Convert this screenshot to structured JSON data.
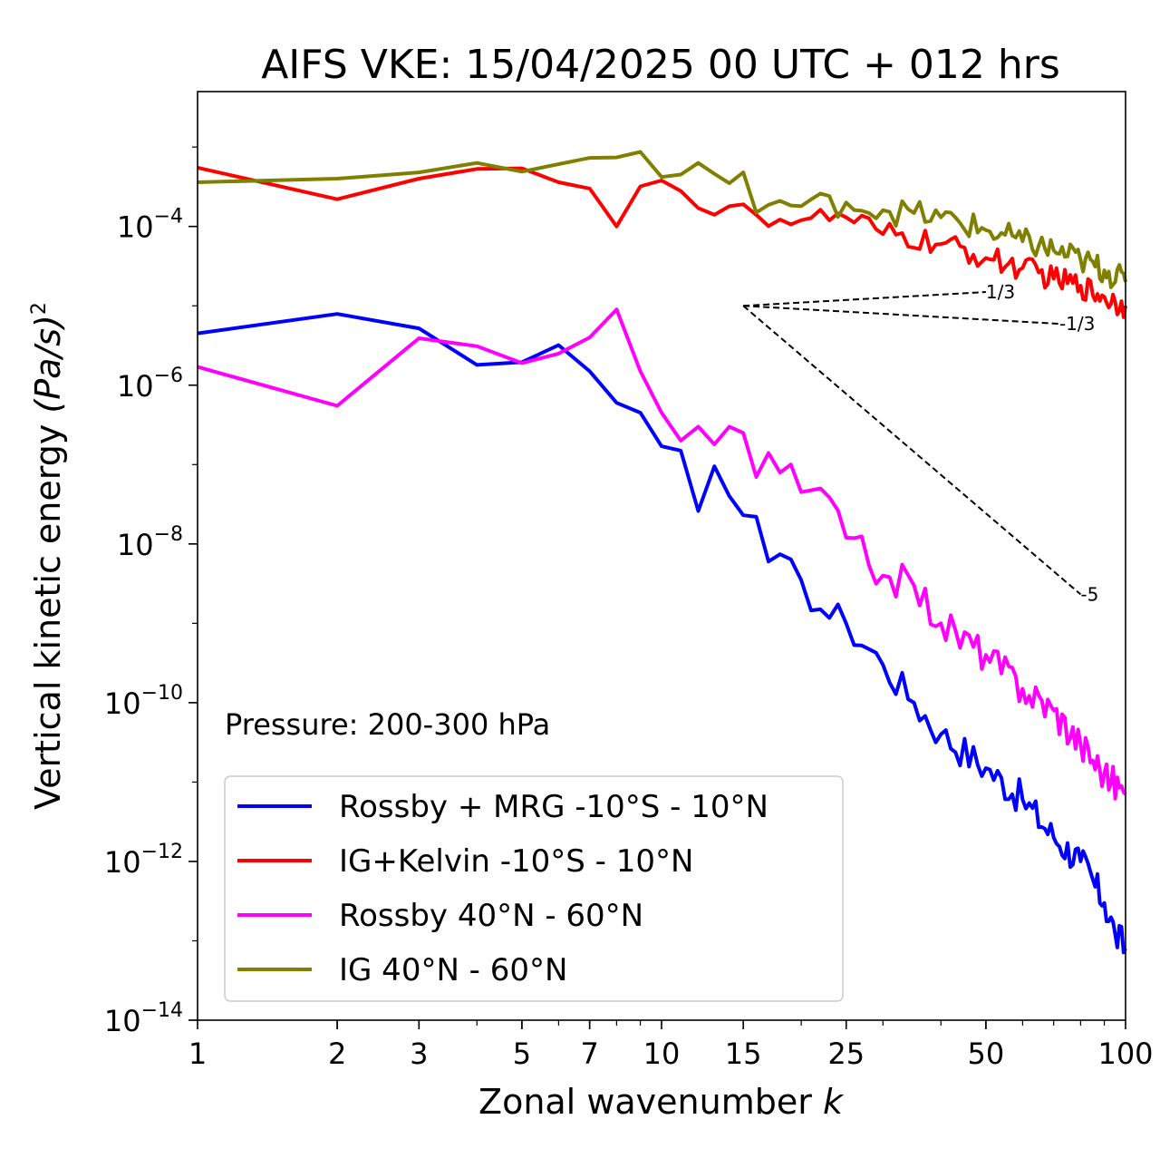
{
  "chart_data": {
    "type": "line",
    "title": "AIFS VKE: 15/04/2025 00 UTC + 012 hrs",
    "xlabel": "Zonal wavenumber",
    "xlabel_symbol": "k",
    "ylabel": "Vertical kinetic energy",
    "ylabel_units": "(Pa/s)",
    "ylabel_exponent": "2",
    "xscale": "log",
    "yscale": "log",
    "xlim": [
      1,
      100
    ],
    "ylim": [
      1e-14,
      0.005
    ],
    "xticks": [
      1,
      2,
      3,
      5,
      7,
      10,
      15,
      25,
      50,
      100
    ],
    "xtick_labels": [
      "1",
      "2",
      "3",
      "5",
      "7",
      "10",
      "15",
      "25",
      "50",
      "100"
    ],
    "yticks": [
      {
        "base": "10",
        "exp": "−4",
        "value": 0.0001
      },
      {
        "base": "10",
        "exp": "−6",
        "value": 1e-06
      },
      {
        "base": "10",
        "exp": "−8",
        "value": 1e-08
      },
      {
        "base": "10",
        "exp": "−10",
        "value": 1e-10
      },
      {
        "base": "10",
        "exp": "−12",
        "value": 1e-12
      },
      {
        "base": "10",
        "exp": "−14",
        "value": 1e-14
      }
    ],
    "grid": false,
    "annotation": "Pressure: 200-300 hPa",
    "legend_position": "lower-left",
    "series": [
      {
        "name": "Rossby + MRG -10°S - 10°N",
        "color": "#0000ff",
        "anchors": [
          [
            1,
            4.5e-06
          ],
          [
            2,
            7.9e-06
          ],
          [
            3,
            5.2e-06
          ],
          [
            4,
            1.8e-06
          ],
          [
            5,
            1.95e-06
          ],
          [
            6,
            3.2e-06
          ],
          [
            7,
            1.5e-06
          ],
          [
            8,
            6e-07
          ],
          [
            9,
            4.5e-07
          ],
          [
            10,
            1.7e-07
          ],
          [
            11,
            1.5e-07
          ],
          [
            12,
            2.6e-08
          ],
          [
            13,
            9.5e-08
          ],
          [
            14,
            4e-08
          ],
          [
            15,
            2.3e-08
          ],
          [
            16,
            2.2e-08
          ],
          [
            17,
            6e-09
          ],
          [
            20,
            3.5e-09
          ],
          [
            22,
            1.5e-09
          ],
          [
            25,
            1e-09
          ],
          [
            30,
            3e-10
          ],
          [
            35,
            1e-10
          ],
          [
            40,
            4e-11
          ],
          [
            50,
            1.5e-11
          ],
          [
            60,
            6e-12
          ],
          [
            70,
            2e-12
          ],
          [
            80,
            1e-12
          ],
          [
            90,
            3e-13
          ],
          [
            95,
            1.2e-13
          ],
          [
            100,
            8e-14
          ]
        ],
        "noise": 0.14
      },
      {
        "name": "IG+Kelvin -10°S - 10°N",
        "color": "#ff0000",
        "anchors": [
          [
            1,
            0.00055
          ],
          [
            2,
            0.00022
          ],
          [
            3,
            0.0004
          ],
          [
            4,
            0.00053
          ],
          [
            5,
            0.00054
          ],
          [
            6,
            0.00036
          ],
          [
            7,
            0.0003
          ],
          [
            8,
            0.0001
          ],
          [
            9,
            0.00032
          ],
          [
            10,
            0.00038
          ],
          [
            11,
            0.00028
          ],
          [
            12,
            0.00017
          ],
          [
            13,
            0.00014
          ],
          [
            14,
            0.00018
          ],
          [
            15,
            0.00019
          ],
          [
            16,
            0.00014
          ],
          [
            20,
            0.00012
          ],
          [
            25,
            0.00013
          ],
          [
            30,
            8e-05
          ],
          [
            40,
            6e-05
          ],
          [
            50,
            4e-05
          ],
          [
            60,
            3e-05
          ],
          [
            70,
            2.2e-05
          ],
          [
            80,
            1.8e-05
          ],
          [
            90,
            1.3e-05
          ],
          [
            100,
            1e-05
          ]
        ],
        "noise": 0.1
      },
      {
        "name": "Rossby 40°N - 60°N",
        "color": "#ff00ff",
        "anchors": [
          [
            1,
            1.7e-06
          ],
          [
            2,
            5.5e-07
          ],
          [
            3,
            3.9e-06
          ],
          [
            4,
            3.1e-06
          ],
          [
            5,
            1.9e-06
          ],
          [
            6,
            2.5e-06
          ],
          [
            7,
            4e-06
          ],
          [
            8,
            9e-06
          ],
          [
            9,
            1.5e-06
          ],
          [
            10,
            4.5e-07
          ],
          [
            11,
            2e-07
          ],
          [
            12,
            3e-07
          ],
          [
            13,
            1.8e-07
          ],
          [
            14,
            3e-07
          ],
          [
            15,
            2.5e-07
          ],
          [
            16,
            7e-08
          ],
          [
            17,
            1.4e-07
          ],
          [
            20,
            4.5e-08
          ],
          [
            22,
            5e-08
          ],
          [
            25,
            1.2e-08
          ],
          [
            30,
            4e-09
          ],
          [
            35,
            3e-09
          ],
          [
            40,
            1e-09
          ],
          [
            50,
            4e-10
          ],
          [
            60,
            1.5e-10
          ],
          [
            70,
            8e-11
          ],
          [
            80,
            3e-11
          ],
          [
            90,
            1.3e-11
          ],
          [
            100,
            7e-12
          ]
        ],
        "noise": 0.14
      },
      {
        "name": "IG 40°N - 60°N",
        "color": "#808000",
        "anchors": [
          [
            1,
            0.00036
          ],
          [
            2,
            0.0004
          ],
          [
            3,
            0.00048
          ],
          [
            4,
            0.00063
          ],
          [
            5,
            0.00049
          ],
          [
            6,
            0.00061
          ],
          [
            7,
            0.00073
          ],
          [
            8,
            0.00074
          ],
          [
            9,
            0.00087
          ],
          [
            10,
            0.00042
          ],
          [
            11,
            0.00045
          ],
          [
            12,
            0.00063
          ],
          [
            13,
            0.00046
          ],
          [
            14,
            0.00035
          ],
          [
            15,
            0.00048
          ],
          [
            16,
            0.00015
          ],
          [
            18,
            0.00021
          ],
          [
            20,
            0.00018
          ],
          [
            25,
            0.0002
          ],
          [
            30,
            0.00016
          ],
          [
            40,
            0.00013
          ],
          [
            50,
            9e-05
          ],
          [
            60,
            6.5e-05
          ],
          [
            70,
            5e-05
          ],
          [
            80,
            3.8e-05
          ],
          [
            90,
            2.8e-05
          ],
          [
            100,
            2e-05
          ]
        ],
        "noise": 0.11
      }
    ],
    "reference_slopes": [
      {
        "label": "1/3",
        "slope": 0.3333,
        "x0": 15,
        "y0": 1e-05,
        "x1": 50
      },
      {
        "label": "-1/3",
        "slope": -0.3333,
        "x0": 15,
        "y0": 1e-05,
        "x1": 72
      },
      {
        "label": "-5",
        "slope": -5,
        "x0": 15,
        "y0": 1e-05,
        "x1": 80
      }
    ]
  }
}
